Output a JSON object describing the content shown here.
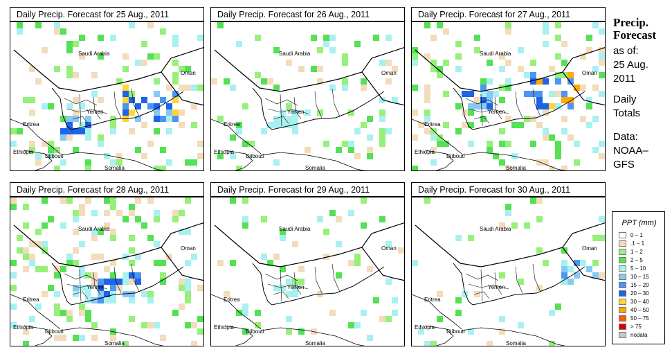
{
  "panels": [
    {
      "title": "Daily Precip. Forecast for  25 Aug., 2011",
      "seed": 1
    },
    {
      "title": "Daily Precip. Forecast for  26 Aug., 2011",
      "seed": 2
    },
    {
      "title": "Daily Precip. Forecast for  27 Aug., 2011",
      "seed": 3
    },
    {
      "title": "Daily Precip. Forecast for  28 Aug., 2011",
      "seed": 4
    },
    {
      "title": "Daily Precip. Forecast for  29 Aug., 2011",
      "seed": 5
    },
    {
      "title": "Daily Precip. Forecast for  30 Aug., 2011",
      "seed": 6
    }
  ],
  "map_labels": {
    "saudi_arabia": "Saudi Arabia",
    "oman": "Oman",
    "yemen": "Yemen",
    "eritrea": "Eritrea",
    "ethiopia": "Ethiopia",
    "djibouti": "Djibouti",
    "somalia": "Somalia"
  },
  "side": {
    "title_line1": "Precip.",
    "title_line2": "Forecast",
    "asof": "as of:",
    "date1": "25 Aug.",
    "date2": "2011",
    "daily1": "Daily",
    "daily2": "Totals",
    "data1": "Data:",
    "data2": "NOAA–",
    "data3": "GFS"
  },
  "legend": {
    "title": "PPT (mm)",
    "items": [
      {
        "label": "0 – 1",
        "color": "#ffffff"
      },
      {
        "label": ".1 – 1",
        "color": "#f2dcbb"
      },
      {
        "label": "1 – 2",
        "color": "#96f07a"
      },
      {
        "label": "2 – 5",
        "color": "#55e055"
      },
      {
        "label": "5 – 10",
        "color": "#a9f0f0"
      },
      {
        "label": "10 – 15",
        "color": "#87c8f5"
      },
      {
        "label": "15 – 20",
        "color": "#4b96f0"
      },
      {
        "label": "20 – 30",
        "color": "#1e64e6"
      },
      {
        "label": "30 – 40",
        "color": "#ffd732"
      },
      {
        "label": "40 – 50",
        "color": "#ffaa00"
      },
      {
        "label": "50 – 75",
        "color": "#ff5a00"
      },
      {
        "label": "> 75",
        "color": "#dc0000"
      },
      {
        "label": "nodata",
        "color": "#c8c8c8"
      }
    ]
  }
}
